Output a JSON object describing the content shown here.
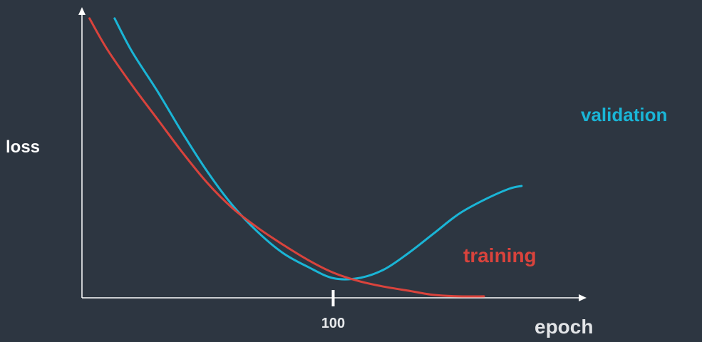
{
  "chart_data": {
    "type": "line",
    "title": "",
    "xlabel": "epoch",
    "ylabel": "loss",
    "xlim": [
      0,
      200
    ],
    "ylim": [
      0,
      1
    ],
    "grid": false,
    "xticks": [
      100
    ],
    "xtick_labels": [
      "100"
    ],
    "series": [
      {
        "name": "validation",
        "color": "#1ab5d6",
        "x": [
          13,
          20,
          30,
          40,
          50,
          60,
          70,
          80,
          90,
          100,
          110,
          120,
          130,
          140,
          150,
          160,
          170,
          175
        ],
        "y": [
          0.98,
          0.86,
          0.72,
          0.57,
          0.43,
          0.31,
          0.215,
          0.14,
          0.09,
          0.05,
          0.05,
          0.08,
          0.14,
          0.21,
          0.28,
          0.33,
          0.37,
          0.38
        ]
      },
      {
        "name": "training",
        "color": "#d9433c",
        "x": [
          3,
          10,
          20,
          30,
          40,
          50,
          60,
          70,
          80,
          90,
          100,
          110,
          120,
          130,
          140,
          150,
          160
        ],
        "y": [
          0.98,
          0.87,
          0.74,
          0.62,
          0.5,
          0.39,
          0.3,
          0.23,
          0.17,
          0.115,
          0.07,
          0.04,
          0.02,
          0.005,
          -0.01,
          -0.015,
          -0.015
        ]
      }
    ],
    "axis_color": "#ffffff",
    "text_color": "#e6e8ea",
    "background_color": "#2d3641"
  }
}
